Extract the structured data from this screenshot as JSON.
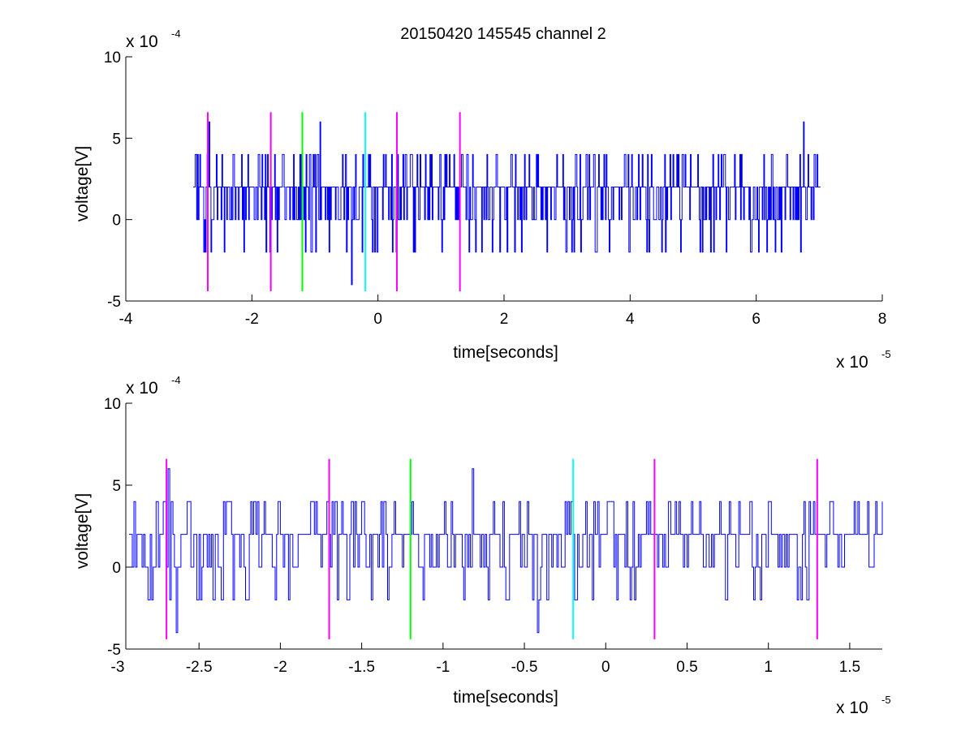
{
  "figure": {
    "title": "20150420 145545 channel 2"
  },
  "colors": {
    "signal": "#0000ff",
    "magenta": "#ff00ff",
    "green": "#00ff00",
    "cyan": "#00ffff",
    "axes": "#000000",
    "background": "#ffffff"
  },
  "chart_data": [
    {
      "type": "line",
      "xlabel": "time[seconds]",
      "ylabel": "voltage[V]",
      "x_multiplier_label": "x 10",
      "x_multiplier_exp": "-5",
      "y_multiplier_label": "x 10",
      "y_multiplier_exp": "-4",
      "xlim": [
        -4,
        8
      ],
      "ylim": [
        -5,
        10
      ],
      "xticks": [
        -4,
        -2,
        0,
        2,
        4,
        6,
        8
      ],
      "xtick_labels": [
        "-4",
        "-2",
        "0",
        "2",
        "4",
        "6",
        "8"
      ],
      "yticks": [
        -5,
        0,
        5,
        10
      ],
      "ytick_labels": [
        "-5",
        "0",
        "5",
        "10"
      ],
      "grid": false,
      "legend": "none",
      "series": [
        {
          "style": "staircase voltage trace, dense quantized noise with levels -4, -2, 0, 2, 4, 6",
          "x_range": [
            -2.93,
            7.02
          ],
          "levels": [
            -4,
            -2,
            0,
            2,
            4,
            6
          ],
          "baseline": 2,
          "dominant_range": [
            0,
            4
          ],
          "x": [
            -2.93,
            -2.9,
            -2.85,
            -2.8,
            -2.75,
            -2.71,
            -2.68,
            -2.65,
            -2.6,
            -2.55,
            -2.5,
            -2.4,
            -2.3,
            -2.2,
            -2.1,
            -2.0,
            -1.9,
            -1.8,
            -1.7,
            -1.6,
            -1.5,
            -1.4,
            -1.3,
            -1.2,
            -1.1,
            -1.0,
            -0.92,
            -0.8,
            -0.7,
            -0.6,
            -0.5,
            -0.42,
            -0.38,
            -0.3,
            -0.2,
            -0.1,
            0.0,
            0.5,
            1.0,
            1.5,
            2.0,
            2.5,
            3.0,
            3.5,
            4.0,
            4.5,
            5.0,
            5.5,
            6.0,
            6.5,
            6.75,
            7.02
          ],
          "y": [
            2,
            4,
            0,
            2,
            0,
            4,
            6,
            -2,
            2,
            0,
            2,
            0,
            4,
            2,
            0,
            2,
            4,
            0,
            2,
            -2,
            4,
            0,
            2,
            2,
            0,
            4,
            6,
            0,
            2,
            0,
            -2,
            -4,
            0,
            2,
            2,
            0,
            2,
            2,
            0,
            4,
            2,
            0,
            2,
            4,
            2,
            -2,
            2,
            4,
            0,
            2,
            6,
            2
          ]
        }
      ],
      "markers": [
        {
          "x": -2.7,
          "color": "magenta",
          "y_range": [
            -4.4,
            6.6
          ]
        },
        {
          "x": -1.7,
          "color": "magenta",
          "y_range": [
            -4.4,
            6.6
          ]
        },
        {
          "x": -1.2,
          "color": "green",
          "y_range": [
            -4.4,
            6.6
          ]
        },
        {
          "x": -0.2,
          "color": "cyan",
          "y_range": [
            -4.4,
            6.6
          ]
        },
        {
          "x": 0.3,
          "color": "magenta",
          "y_range": [
            -4.4,
            6.6
          ]
        },
        {
          "x": 1.3,
          "color": "magenta",
          "y_range": [
            -4.4,
            6.6
          ]
        }
      ]
    },
    {
      "type": "line",
      "xlabel": "time[seconds]",
      "ylabel": "voltage[V]",
      "x_multiplier_label": "x 10",
      "x_multiplier_exp": "-5",
      "y_multiplier_label": "x 10",
      "y_multiplier_exp": "-4",
      "xlim": [
        -2.95,
        1.7
      ],
      "ylim": [
        -5,
        10
      ],
      "xticks": [
        -3,
        -2.5,
        -2,
        -1.5,
        -1,
        -0.5,
        0,
        0.5,
        1,
        1.5
      ],
      "xtick_labels": [
        "-3",
        "-2.5",
        "-2",
        "-1.5",
        "-1",
        "-0.5",
        "0",
        "0.5",
        "1",
        "1.5"
      ],
      "yticks": [
        -5,
        0,
        5,
        10
      ],
      "ytick_labels": [
        "-5",
        "0",
        "5",
        "10"
      ],
      "grid": false,
      "legend": "none",
      "series": [
        {
          "style": "zoomed staircase voltage trace, quantized levels -4, -2, 0, 2, 4, 6",
          "x_range": [
            -2.93,
            1.7
          ],
          "levels": [
            -4,
            -2,
            0,
            2,
            4,
            6
          ],
          "x": [
            -2.93,
            -2.91,
            -2.9,
            -2.89,
            -2.87,
            -2.85,
            -2.8,
            -2.75,
            -2.72,
            -2.69,
            -2.68,
            -2.66,
            -2.64,
            -2.62,
            -2.6,
            -2.55,
            -2.5,
            -2.45,
            -2.4,
            -2.35,
            -2.3,
            -2.25,
            -2.2,
            -2.15,
            -2.1,
            -2.05,
            -2.0,
            -1.95,
            -1.9,
            -1.85,
            -1.8,
            -1.75,
            -1.7,
            -1.65,
            -1.6,
            -1.55,
            -1.5,
            -1.45,
            -1.4,
            -1.35,
            -1.3,
            -1.25,
            -1.2,
            -1.15,
            -1.1,
            -1.05,
            -1.0,
            -0.95,
            -0.9,
            -0.85,
            -0.82,
            -0.78,
            -0.75,
            -0.7,
            -0.65,
            -0.6,
            -0.55,
            -0.5,
            -0.45,
            -0.42,
            -0.4,
            -0.38,
            -0.35,
            -0.3,
            -0.25,
            -0.2,
            -0.15,
            -0.1,
            -0.05,
            0.0,
            0.05,
            0.1,
            0.15,
            0.2,
            0.25,
            0.3,
            0.35,
            0.4,
            0.45,
            0.5,
            0.55,
            0.6,
            0.65,
            0.7,
            0.75,
            0.8,
            0.85,
            0.9,
            0.95,
            1.0,
            1.05,
            1.1,
            1.15,
            1.2,
            1.25,
            1.3,
            1.35,
            1.4,
            1.45,
            1.5,
            1.55,
            1.6,
            1.65,
            1.7
          ],
          "y": [
            2,
            0,
            4,
            0,
            2,
            0,
            2,
            0,
            4,
            6,
            -2,
            2,
            -4,
            0,
            2,
            0,
            2,
            0,
            2,
            4,
            2,
            0,
            -2,
            2,
            4,
            0,
            2,
            -2,
            0,
            2,
            4,
            0,
            2,
            -2,
            2,
            0,
            4,
            2,
            0,
            2,
            4,
            0,
            2,
            0,
            2,
            0,
            2,
            4,
            2,
            0,
            6,
            2,
            0,
            2,
            0,
            -2,
            2,
            0,
            -2,
            -4,
            0,
            2,
            2,
            0,
            4,
            2,
            0,
            2,
            4,
            2,
            0,
            2,
            -2,
            2,
            4,
            2,
            0,
            2,
            4,
            0,
            2,
            0,
            2,
            4,
            2,
            0,
            2,
            0,
            -2,
            4,
            2,
            0,
            2,
            -2,
            4,
            2,
            0,
            2,
            0,
            2,
            4,
            2,
            2,
            4
          ]
        }
      ],
      "markers": [
        {
          "x": -2.7,
          "color": "magenta",
          "y_range": [
            -4.4,
            6.6
          ]
        },
        {
          "x": -1.7,
          "color": "magenta",
          "y_range": [
            -4.4,
            6.6
          ]
        },
        {
          "x": -1.2,
          "color": "green",
          "y_range": [
            -4.4,
            6.6
          ]
        },
        {
          "x": -0.2,
          "color": "cyan",
          "y_range": [
            -4.4,
            6.6
          ]
        },
        {
          "x": 0.3,
          "color": "magenta",
          "y_range": [
            -4.4,
            6.6
          ]
        },
        {
          "x": 1.3,
          "color": "magenta",
          "y_range": [
            -4.4,
            6.6
          ]
        }
      ]
    }
  ]
}
